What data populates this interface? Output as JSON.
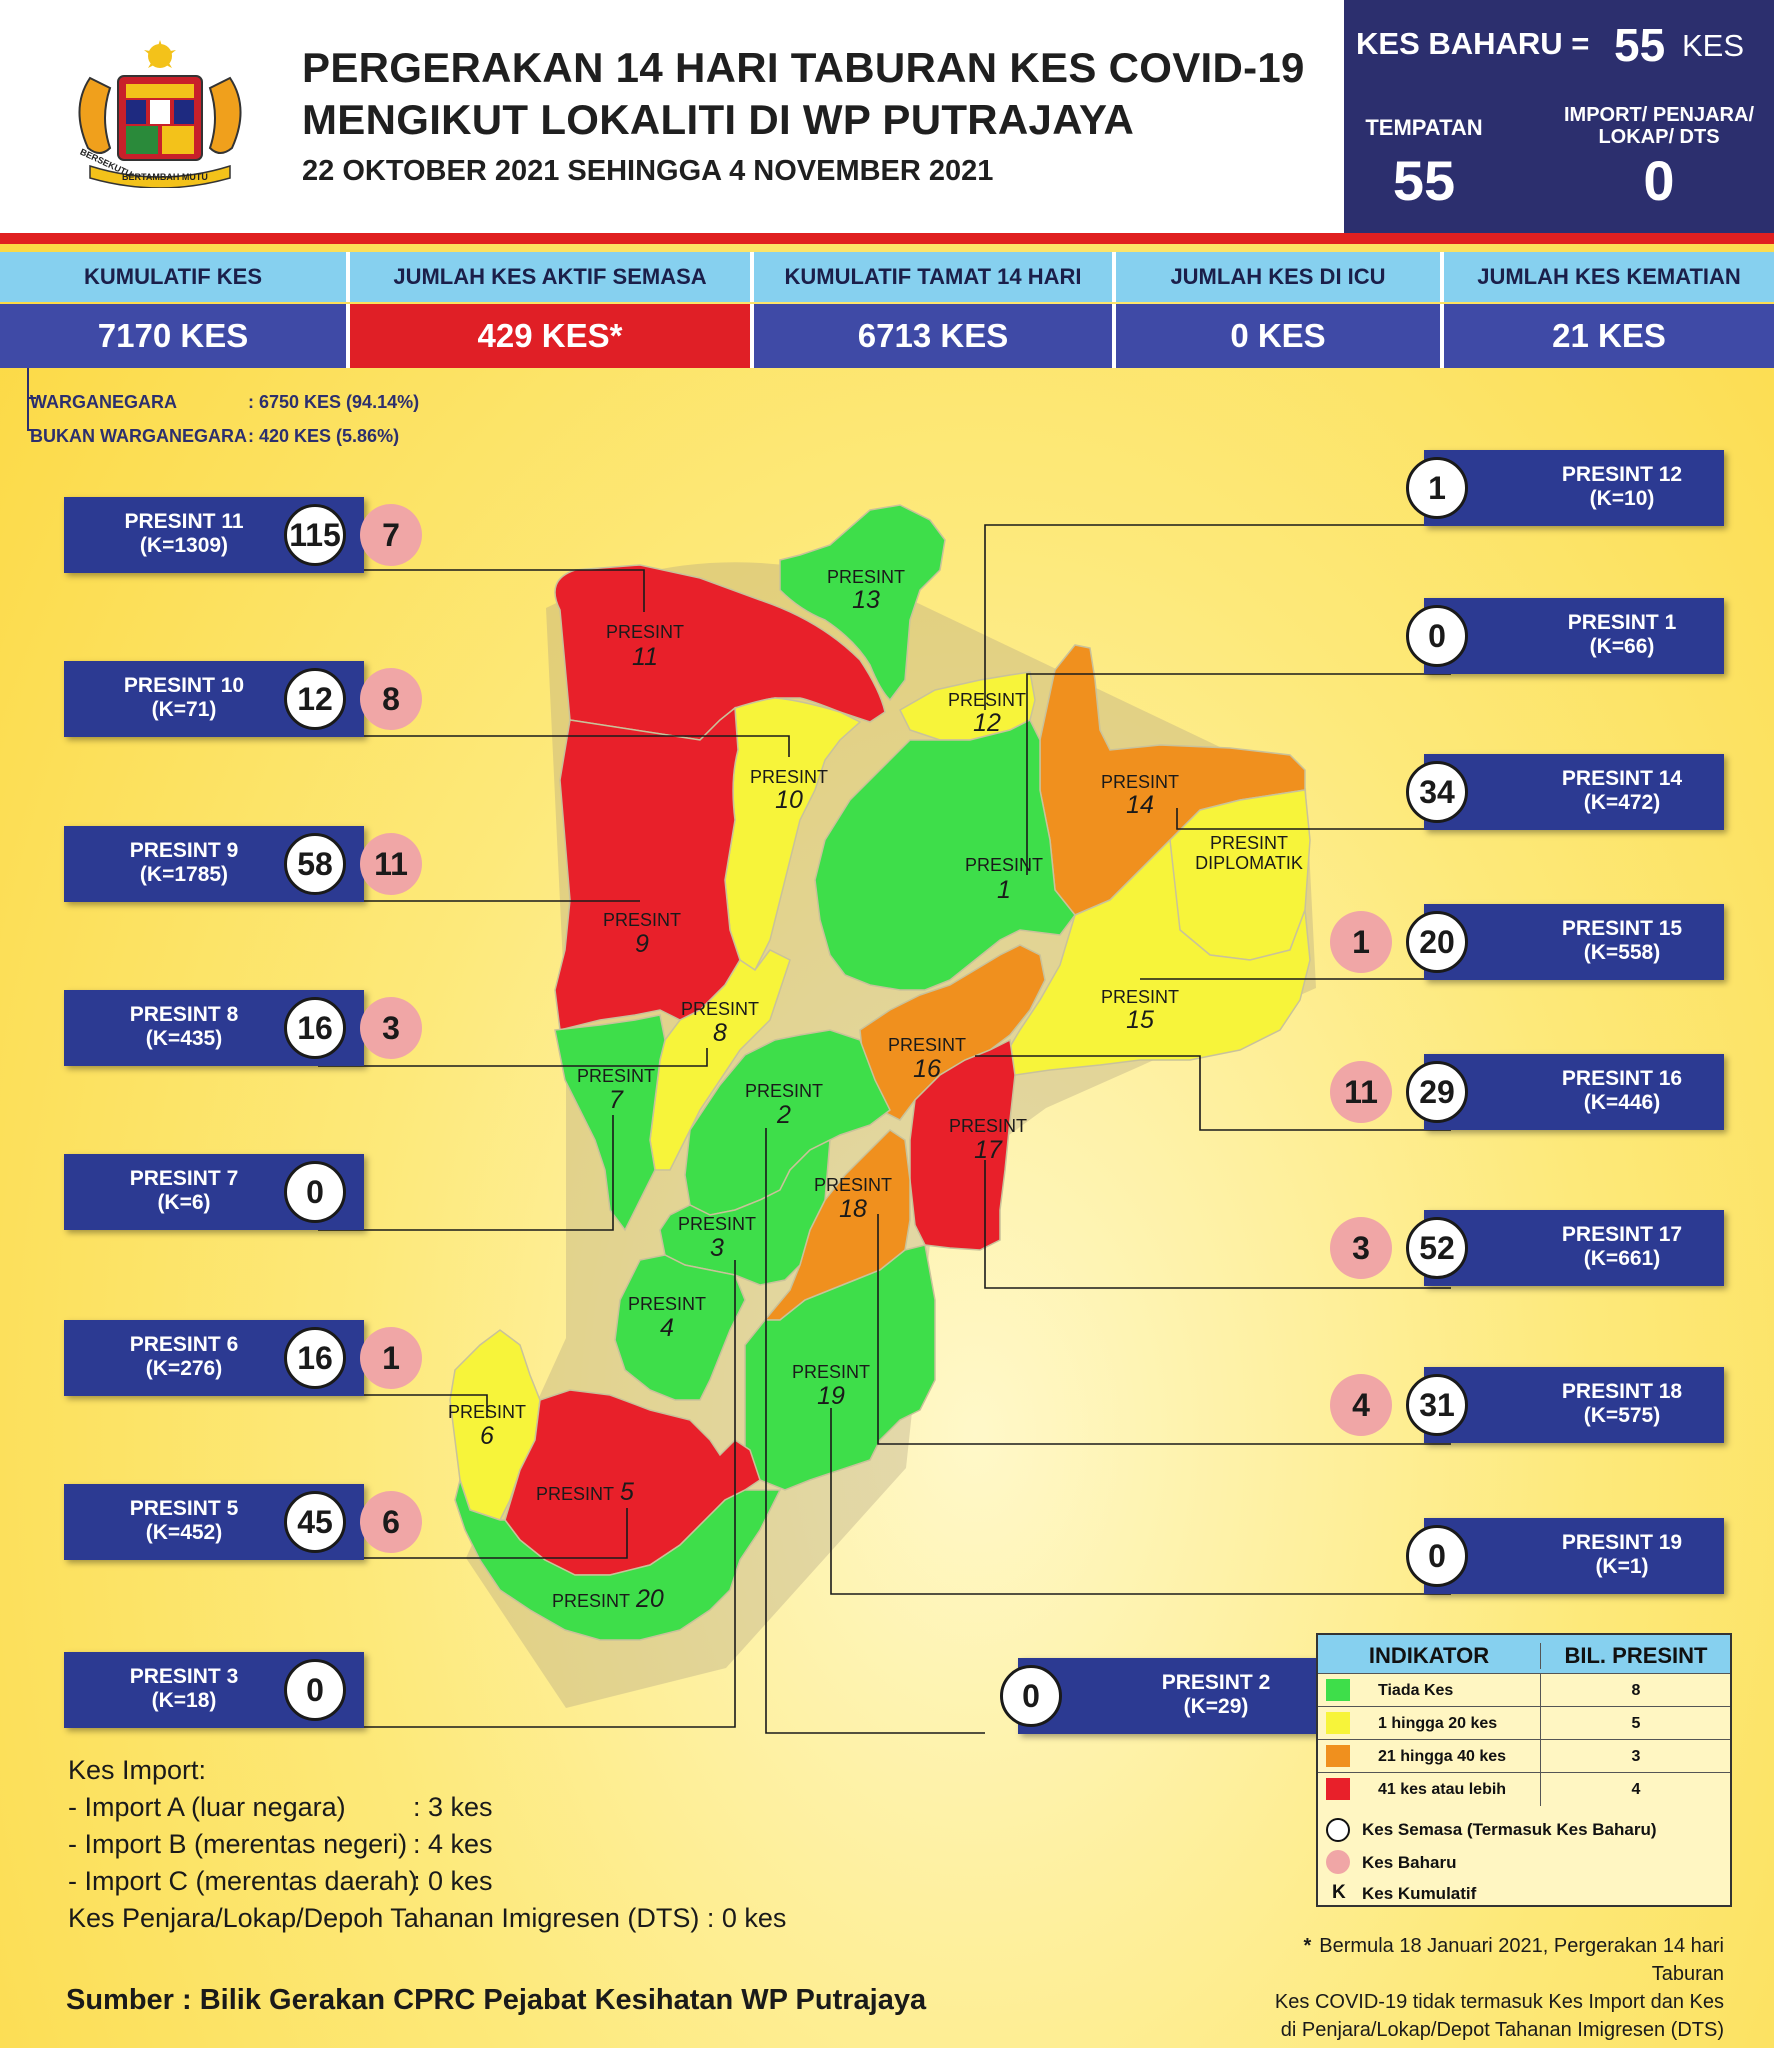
{
  "header": {
    "title_line1": "PERGERAKAN 14 HARI TABURAN KES COVID-19",
    "title_line2": "MENGIKUT LOKALITI DI WP PUTRAJAYA",
    "date_range": "22 OKTOBER 2021 SEHINGGA 4 NOVEMBER 2021",
    "crest_motto_left": "BERSEKUTU",
    "crest_motto_center": "BERTAMBAH MUTU"
  },
  "new_cases": {
    "label": "KES BAHARU =",
    "value": "55",
    "unit": "KES",
    "local_label": "TEMPATAN",
    "local_value": "55",
    "import_label_1": "IMPORT/ PENJARA/",
    "import_label_2": "LOKAP/ DTS",
    "import_value": "0"
  },
  "stats": [
    {
      "label": "KUMULATIF KES",
      "value": "7170 KES",
      "color": "#3f4aa6"
    },
    {
      "label": "JUMLAH KES AKTIF SEMASA",
      "value": "429 KES*",
      "color": "#e01f26"
    },
    {
      "label": "KUMULATIF TAMAT 14 HARI",
      "value": "6713 KES",
      "color": "#3f4aa6"
    },
    {
      "label": "JUMLAH KES DI ICU",
      "value": "0 KES",
      "color": "#3f4aa6"
    },
    {
      "label": "JUMLAH KES KEMATIAN",
      "value": "21 KES",
      "color": "#3f4aa6"
    }
  ],
  "citizenship": {
    "citizen_label": "WARGANEGARA",
    "citizen_value": ": 6750 KES (94.14%)",
    "noncitizen_label": "BUKAN WARGANEGARA",
    "noncitizen_value": ": 420 KES (5.86%)"
  },
  "presints": [
    {
      "name": "PRESINT 11",
      "k": "(K=1309)",
      "active": "115",
      "new": "7"
    },
    {
      "name": "PRESINT 10",
      "k": "(K=71)",
      "active": "12",
      "new": "8"
    },
    {
      "name": "PRESINT 9",
      "k": "(K=1785)",
      "active": "58",
      "new": "11"
    },
    {
      "name": "PRESINT 8",
      "k": "(K=435)",
      "active": "16",
      "new": "3"
    },
    {
      "name": "PRESINT 7",
      "k": "(K=6)",
      "active": "0",
      "new": null
    },
    {
      "name": "PRESINT 6",
      "k": "(K=276)",
      "active": "16",
      "new": "1"
    },
    {
      "name": "PRESINT 5",
      "k": "(K=452)",
      "active": "45",
      "new": "6"
    },
    {
      "name": "PRESINT 3",
      "k": "(K=18)",
      "active": "0",
      "new": null
    },
    {
      "name": "PRESINT 2",
      "k": "(K=29)",
      "active": "0",
      "new": null
    },
    {
      "name": "PRESINT 12",
      "k": "(K=10)",
      "active": "1",
      "new": null
    },
    {
      "name": "PRESINT 1",
      "k": "(K=66)",
      "active": "0",
      "new": null
    },
    {
      "name": "PRESINT 14",
      "k": "(K=472)",
      "active": "34",
      "new": null
    },
    {
      "name": "PRESINT 15",
      "k": "(K=558)",
      "active": "20",
      "new": "1"
    },
    {
      "name": "PRESINT 16",
      "k": "(K=446)",
      "active": "29",
      "new": "11"
    },
    {
      "name": "PRESINT 17",
      "k": "(K=661)",
      "active": "52",
      "new": "3"
    },
    {
      "name": "PRESINT 18",
      "k": "(K=575)",
      "active": "31",
      "new": "4"
    },
    {
      "name": "PRESINT 19",
      "k": "(K=1)",
      "active": "0",
      "new": null
    }
  ],
  "map": {
    "word": "PRESINT",
    "diplomatik": "DIPLOMATIK",
    "regions": [
      {
        "id": "11",
        "category": "red"
      },
      {
        "id": "13",
        "category": "green"
      },
      {
        "id": "12",
        "category": "yellow"
      },
      {
        "id": "10",
        "category": "yellow"
      },
      {
        "id": "14",
        "category": "orange"
      },
      {
        "id": "diplomatik",
        "category": "yellow"
      },
      {
        "id": "1",
        "category": "green"
      },
      {
        "id": "9",
        "category": "red"
      },
      {
        "id": "15",
        "category": "yellow"
      },
      {
        "id": "8",
        "category": "yellow"
      },
      {
        "id": "16",
        "category": "orange"
      },
      {
        "id": "7",
        "category": "green"
      },
      {
        "id": "2",
        "category": "green"
      },
      {
        "id": "17",
        "category": "red"
      },
      {
        "id": "18",
        "category": "orange"
      },
      {
        "id": "3",
        "category": "green"
      },
      {
        "id": "4",
        "category": "green"
      },
      {
        "id": "19",
        "category": "green"
      },
      {
        "id": "6",
        "category": "yellow"
      },
      {
        "id": "5",
        "category": "red"
      },
      {
        "id": "20",
        "category": "green"
      }
    ],
    "colors": {
      "green": "#3ede4a",
      "yellow": "#f7f43a",
      "orange": "#f0901e",
      "red": "#e8202a"
    }
  },
  "legend": {
    "header_indicator": "INDIKATOR",
    "header_count": "BIL. PRESINT",
    "rows": [
      {
        "label": "Tiada Kes",
        "count": "8",
        "color": "#3ede4a"
      },
      {
        "label": "1 hingga 20 kes",
        "count": "5",
        "color": "#f7f43a"
      },
      {
        "label": "21 hingga 40 kes",
        "count": "3",
        "color": "#f0901e"
      },
      {
        "label": "41 kes atau lebih",
        "count": "4",
        "color": "#e8202a"
      }
    ],
    "active_key": "Kes Semasa (Termasuk Kes Baharu)",
    "new_key": "Kes Baharu",
    "k_symbol": "K",
    "k_key": "Kes Kumulatif"
  },
  "imports": {
    "title": "Kes Import:",
    "rows": [
      {
        "label": "- Import A (luar negara)",
        "value": ": 3 kes"
      },
      {
        "label": "- Import B (merentas negeri)",
        "value": ": 4 kes"
      },
      {
        "label": "- Import C (merentas daerah)",
        "value": ": 0 kes"
      }
    ],
    "prison_line": "Kes Penjara/Lokap/Depoh Tahanan Imigresen (DTS) : 0 kes"
  },
  "source": "Sumber : Bilik Gerakan CPRC Pejabat Kesihatan WP Putrajaya",
  "footnote": {
    "star": "*",
    "line1": "Bermula 18 Januari 2021, Pergerakan 14 hari Taburan",
    "line2": "Kes COVID-19 tidak termasuk Kes Import dan Kes",
    "line3": "di Penjara/Lokap/Depot Tahanan Imigresen (DTS)"
  }
}
